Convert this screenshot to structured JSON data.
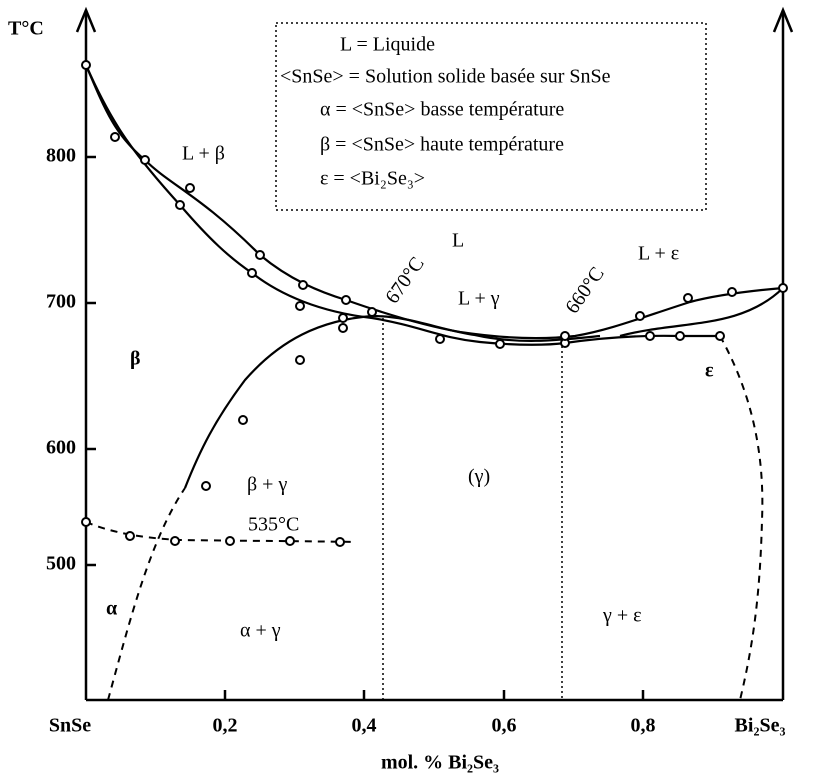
{
  "axes": {
    "y_title": "T°C",
    "y_ticks": [
      "800",
      "700",
      "600",
      "500"
    ],
    "x_left": "SnSe",
    "x_ticks": [
      "0,2",
      "0,4",
      "0,6",
      "0,8"
    ],
    "x_right": "Bi₂Se₃",
    "x_title": "mol. % Bi₂Se₃"
  },
  "legend": [
    "L = Liquide",
    "<SnSe> = Solution solide basée sur SnSe",
    "α = <SnSe> basse température",
    "β = <SnSe> haute température",
    "ε = <Bi₂Se₃>"
  ],
  "regions": [
    "L + β",
    "L",
    "L + γ",
    "L + ε",
    "670°C",
    "660°C",
    "β",
    "ε",
    "β + γ",
    "(γ)",
    "535°C",
    "α",
    "α + γ",
    "γ + ε"
  ]
}
